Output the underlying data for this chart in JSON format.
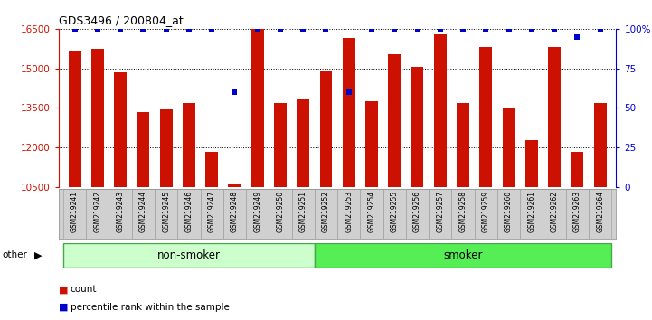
{
  "title": "GDS3496 / 200804_at",
  "categories": [
    "GSM219241",
    "GSM219242",
    "GSM219243",
    "GSM219244",
    "GSM219245",
    "GSM219246",
    "GSM219247",
    "GSM219248",
    "GSM219249",
    "GSM219250",
    "GSM219251",
    "GSM219252",
    "GSM219253",
    "GSM219254",
    "GSM219255",
    "GSM219256",
    "GSM219257",
    "GSM219258",
    "GSM219259",
    "GSM219260",
    "GSM219261",
    "GSM219262",
    "GSM219263",
    "GSM219264"
  ],
  "bar_values": [
    15680,
    15750,
    14850,
    13350,
    13450,
    13680,
    11850,
    10650,
    16500,
    13680,
    13820,
    14900,
    16150,
    13750,
    15550,
    15050,
    16300,
    13680,
    15800,
    13500,
    12300,
    15800,
    11850,
    13680
  ],
  "percentile_values": [
    100,
    100,
    100,
    100,
    100,
    100,
    100,
    60,
    100,
    100,
    100,
    100,
    60,
    100,
    100,
    100,
    100,
    100,
    100,
    100,
    100,
    100,
    95,
    100
  ],
  "bar_color": "#cc1100",
  "percentile_color": "#0000cc",
  "ylim_left": [
    10500,
    16500
  ],
  "ylim_right": [
    0,
    100
  ],
  "yticks_left": [
    10500,
    12000,
    13500,
    15000,
    16500
  ],
  "yticks_right": [
    0,
    25,
    50,
    75,
    100
  ],
  "ytick_labels_right": [
    "0",
    "25",
    "50",
    "75",
    "100%"
  ],
  "non_smoker_count": 11,
  "smoker_count": 13,
  "group_labels": [
    "non-smoker",
    "smoker"
  ],
  "group_colors_light": "#ccffcc",
  "group_colors_dark": "#55ee55",
  "group_border_color": "#44aa44",
  "other_label": "other",
  "legend_count_label": "count",
  "legend_percentile_label": "percentile rank within the sample",
  "bg_color": "#ffffff",
  "xtick_bg_color": "#d0d0d0",
  "xtick_border_color": "#999999",
  "grid_color": "#000000",
  "bar_width": 0.55
}
